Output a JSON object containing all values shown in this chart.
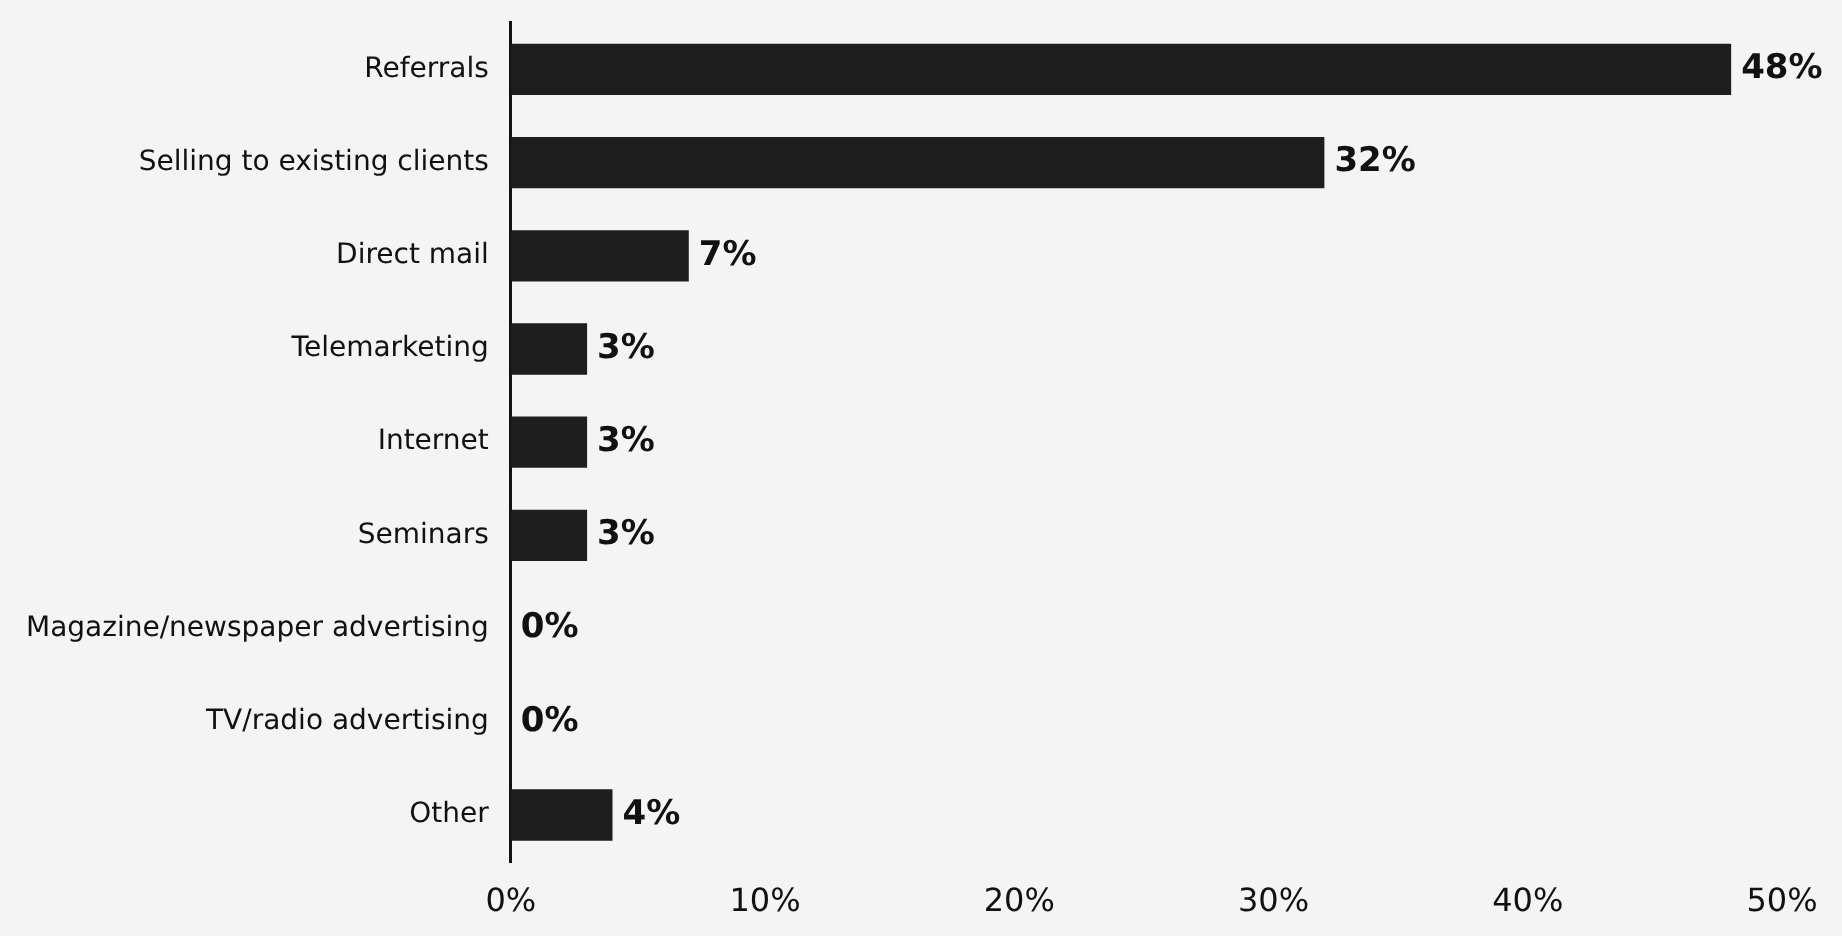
{
  "chart_data": {
    "type": "bar",
    "orientation": "horizontal",
    "categories": [
      "Referrals",
      "Selling to existing clients",
      "Direct mail",
      "Telemarketing",
      "Internet",
      "Seminars",
      "Magazine/newspaper advertising",
      "TV/radio advertising",
      "Other"
    ],
    "values": [
      48,
      32,
      7,
      3,
      3,
      3,
      0,
      0,
      4
    ],
    "value_labels": [
      "48%",
      "32%",
      "7%",
      "3%",
      "3%",
      "3%",
      "0%",
      "0%",
      "4%"
    ],
    "color": "#1e1e1e",
    "xlim": [
      0,
      50
    ],
    "xticks": [
      {
        "value": 0,
        "label": "0%"
      },
      {
        "value": 10,
        "label": "10%"
      },
      {
        "value": 20,
        "label": "20%"
      },
      {
        "value": 30,
        "label": "30%"
      },
      {
        "value": 40,
        "label": "40%"
      },
      {
        "value": 50,
        "label": "50%"
      }
    ],
    "grid": false,
    "legend": false
  }
}
